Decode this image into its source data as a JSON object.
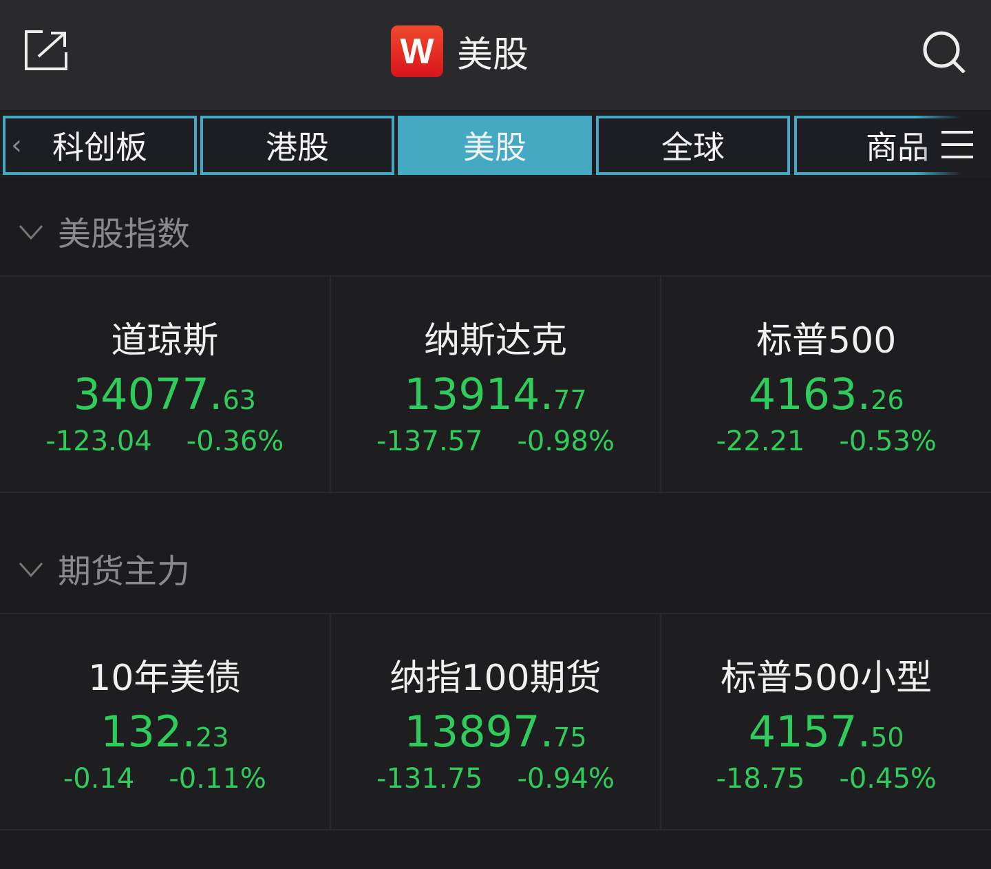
{
  "header": {
    "title": "美股",
    "logo_text": "W"
  },
  "tabs": [
    {
      "label": "科创板"
    },
    {
      "label": "港股"
    },
    {
      "label": "美股",
      "active": true
    },
    {
      "label": "全球"
    },
    {
      "label": "商品"
    }
  ],
  "colors": {
    "accent": "#46a9c4",
    "down": "#2fcc5b",
    "logo": "#e42a20"
  },
  "sections": [
    {
      "title": "美股指数",
      "items": [
        {
          "name": "道琼斯",
          "int": "34077.",
          "dec": "63",
          "change": "-123.04",
          "pct": "-0.36%"
        },
        {
          "name": "纳斯达克",
          "int": "13914.",
          "dec": "77",
          "change": "-137.57",
          "pct": "-0.98%"
        },
        {
          "name": "标普500",
          "int": "4163.",
          "dec": "26",
          "change": "-22.21",
          "pct": "-0.53%"
        }
      ]
    },
    {
      "title": "期货主力",
      "items": [
        {
          "name": "10年美债",
          "int": "132.",
          "dec": "23",
          "change": "-0.14",
          "pct": "-0.11%"
        },
        {
          "name": "纳指100期货",
          "int": "13897.",
          "dec": "75",
          "change": "-131.75",
          "pct": "-0.94%"
        },
        {
          "name": "标普500小型",
          "int": "4157.",
          "dec": "50",
          "change": "-18.75",
          "pct": "-0.45%"
        }
      ]
    }
  ]
}
